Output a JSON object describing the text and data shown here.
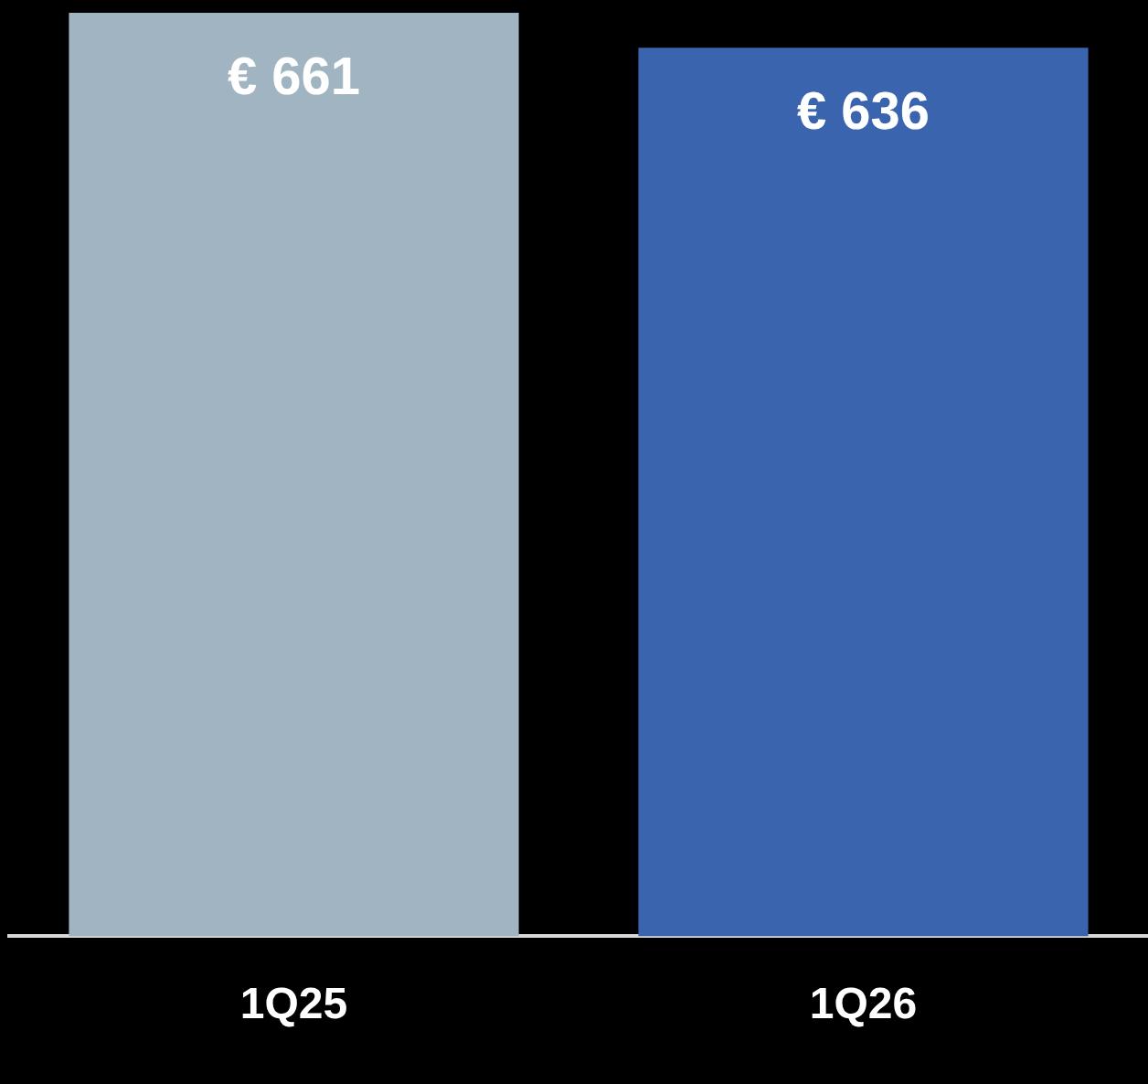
{
  "chart_data": {
    "type": "bar",
    "categories": [
      "1Q25",
      "1Q26"
    ],
    "values": [
      661,
      636
    ],
    "colors": [
      "#a0b4c2",
      "#3a64ae"
    ],
    "value_labels": [
      "€ 661",
      "€ 636"
    ],
    "ylim": [
      0,
      661
    ],
    "tick_labels": "x",
    "grid": false,
    "legend": false
  }
}
